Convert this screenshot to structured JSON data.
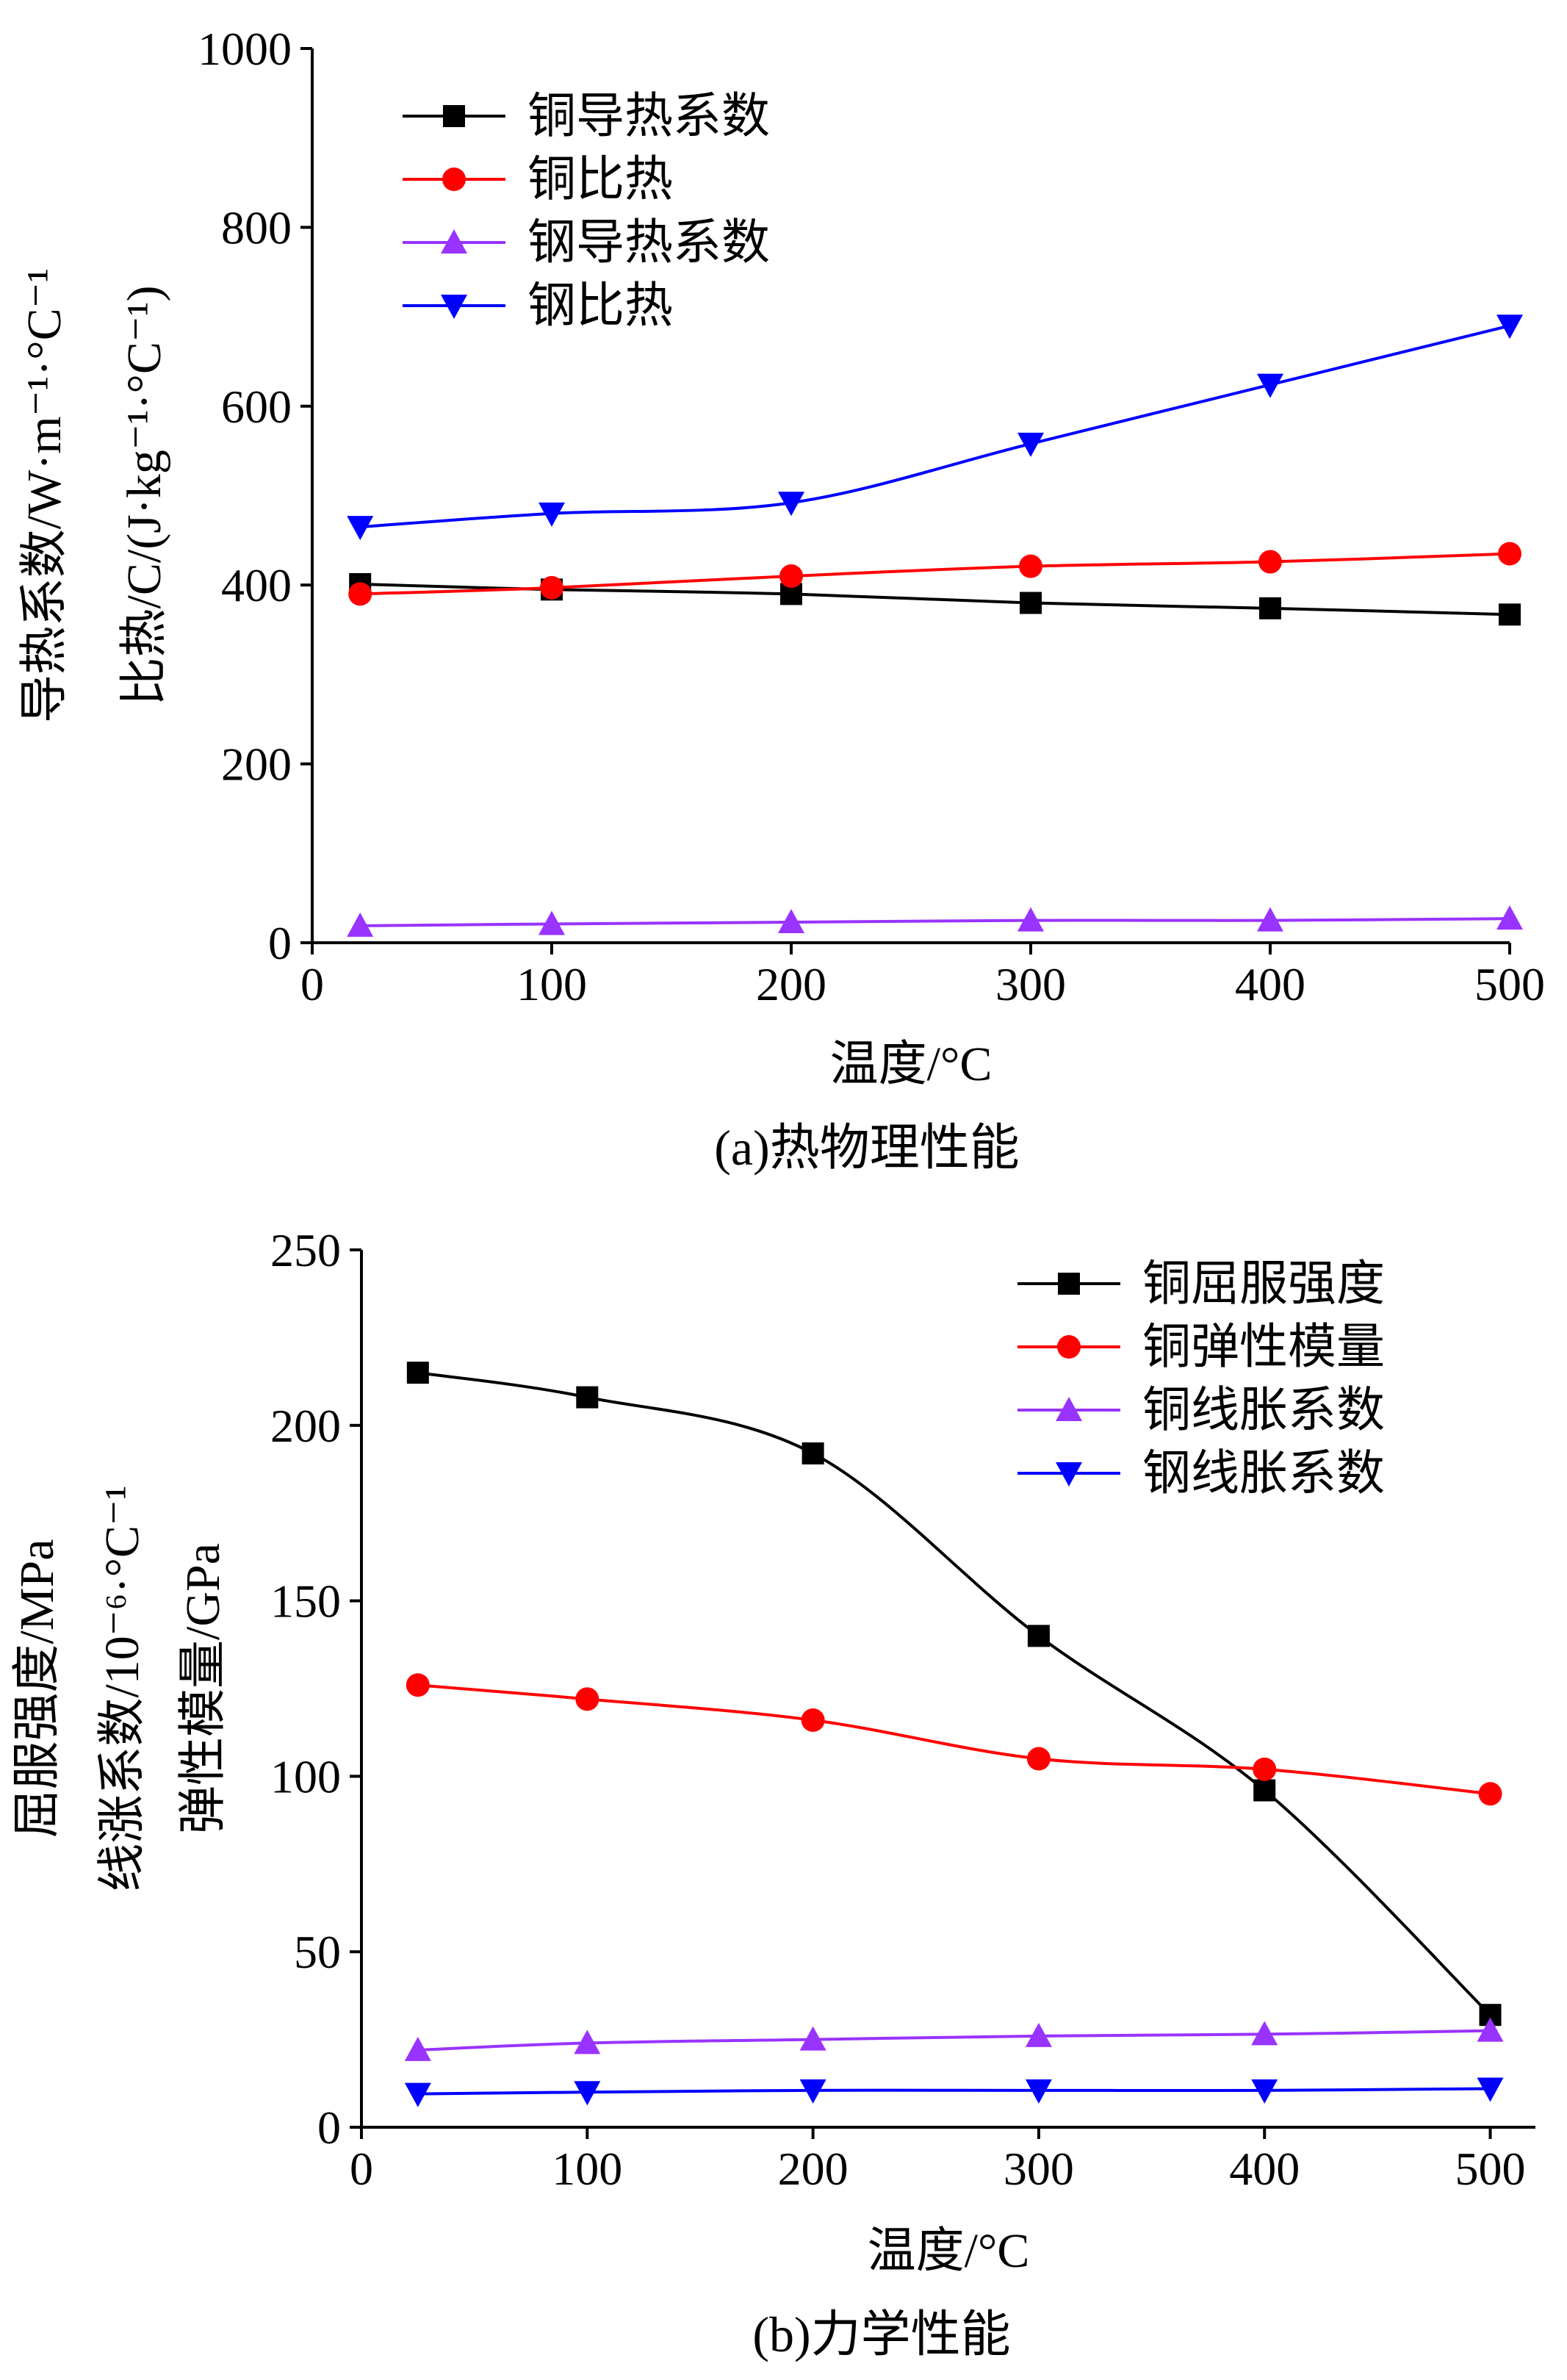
{
  "figure": {
    "caption_a": "(a)热物理性能",
    "caption_b": "(b)力学性能"
  },
  "chart_data": [
    {
      "type": "line",
      "x": [
        20,
        100,
        200,
        300,
        400,
        500
      ],
      "xlabel": "温度/°C",
      "ylabel_lines": [
        "导热系数/W·m⁻¹·°C⁻¹",
        "比热/C/(J·kg⁻¹·°C⁻¹)"
      ],
      "xlim": [
        0,
        500
      ],
      "ylim": [
        0,
        1000
      ],
      "xticks": [
        0,
        100,
        200,
        300,
        400,
        500
      ],
      "yticks": [
        0,
        200,
        400,
        600,
        800,
        1000
      ],
      "grid": false,
      "legend_position": "top-left",
      "series": [
        {
          "name": "铜导热系数",
          "marker": "square",
          "color": "#000000",
          "values": [
            401,
            395,
            390,
            380,
            374,
            367
          ]
        },
        {
          "name": "铜比热",
          "marker": "circle",
          "color": "#ff0000",
          "values": [
            390,
            397,
            410,
            421,
            426,
            435
          ]
        },
        {
          "name": "钢导热系数",
          "marker": "triangle-up",
          "color": "#9933ff",
          "values": [
            19,
            21,
            23,
            25,
            25,
            27
          ]
        },
        {
          "name": "钢比热",
          "marker": "triangle-down",
          "color": "#0000ff",
          "values": [
            465,
            480,
            492,
            558,
            624,
            690
          ]
        }
      ]
    },
    {
      "type": "line",
      "x": [
        25,
        100,
        200,
        300,
        400,
        500
      ],
      "xlabel": "温度/°C",
      "ylabel_lines": [
        "屈服强度/MPa",
        "线涨系数/10⁻⁶·°C⁻¹",
        "弹性模量/GPa"
      ],
      "xlim": [
        0,
        520
      ],
      "ylim": [
        0,
        250
      ],
      "xticks": [
        0,
        100,
        200,
        300,
        400,
        500
      ],
      "yticks": [
        0,
        50,
        100,
        150,
        200,
        250
      ],
      "grid": false,
      "legend_position": "top-right",
      "series": [
        {
          "name": "铜屈服强度",
          "marker": "square",
          "color": "#000000",
          "values": [
            215,
            208,
            192,
            140,
            96,
            32
          ]
        },
        {
          "name": "铜弹性模量",
          "marker": "circle",
          "color": "#ff0000",
          "values": [
            126,
            122,
            116,
            105,
            102,
            95
          ]
        },
        {
          "name": "铜线胀系数",
          "marker": "triangle-up",
          "color": "#9933ff",
          "values": [
            22,
            24,
            25,
            26,
            26.5,
            27.5
          ]
        },
        {
          "name": "钢线胀系数",
          "marker": "triangle-down",
          "color": "#0000ff",
          "values": [
            9.5,
            10,
            10.5,
            10.5,
            10.5,
            11
          ]
        }
      ]
    }
  ]
}
